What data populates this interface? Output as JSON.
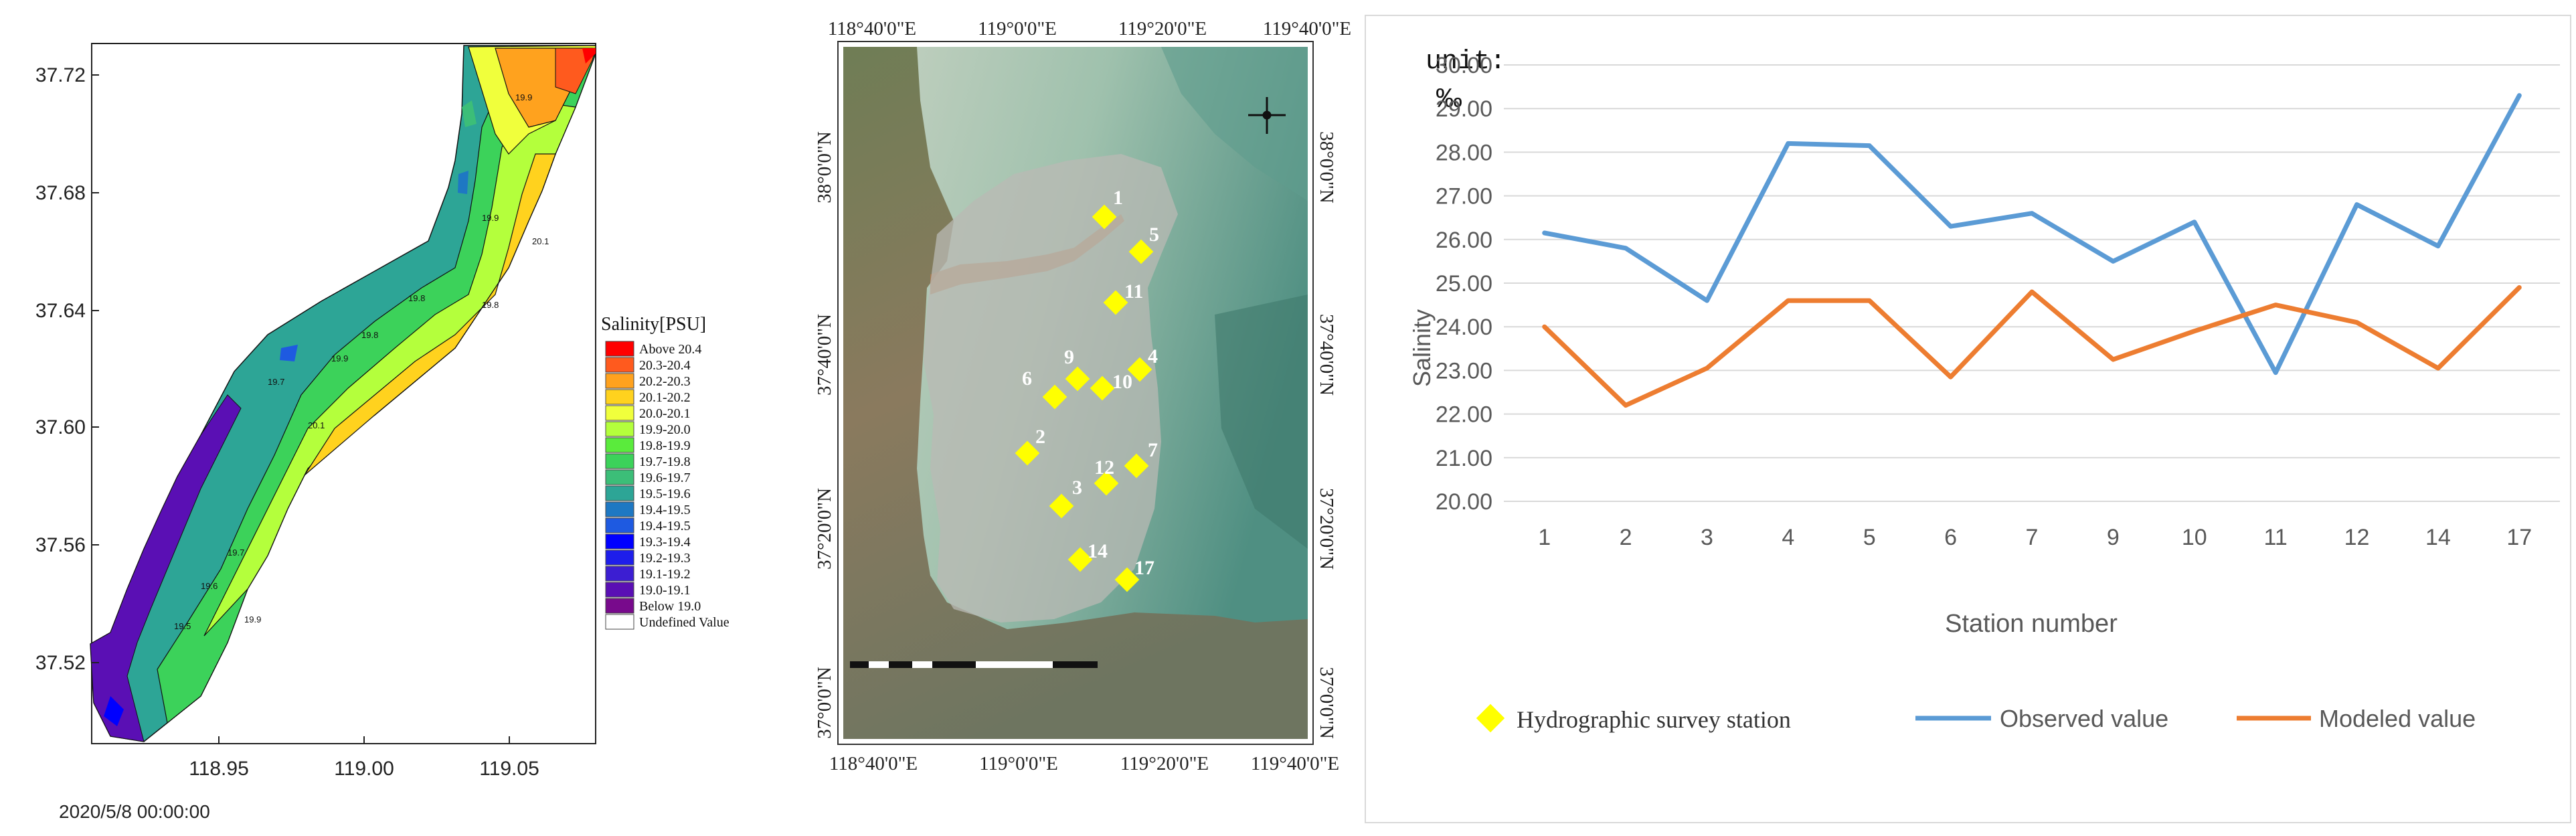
{
  "map": {
    "y_ticks": [
      "37.72",
      "37.68",
      "37.64",
      "37.60",
      "37.56",
      "37.52"
    ],
    "x_ticks": [
      "118.95",
      "119.00",
      "119.05"
    ],
    "timestamp": "2020/5/8 00:00:00",
    "contour_labels": [
      "19.9",
      "20.1",
      "19.9",
      "19.8",
      "19.8",
      "20.1",
      "19.8",
      "19.7",
      "19.9",
      "19.7",
      "19.6",
      "19.9",
      "19.5"
    ],
    "legend": {
      "title": "Salinity[PSU]",
      "items": [
        {
          "label": "Above 20.4",
          "color": "#ff0000"
        },
        {
          "label": "20.3-20.4",
          "color": "#ff5a1e"
        },
        {
          "label": "20.2-20.3",
          "color": "#ffa21e"
        },
        {
          "label": "20.1-20.2",
          "color": "#ffd21e"
        },
        {
          "label": "20.0-20.1",
          "color": "#f0ff3c"
        },
        {
          "label": "19.9-20.0",
          "color": "#b4ff3c"
        },
        {
          "label": "19.8-19.9",
          "color": "#5aeb3c"
        },
        {
          "label": "19.7-19.8",
          "color": "#3cd25a"
        },
        {
          "label": "19.6-19.7",
          "color": "#3cbe78"
        },
        {
          "label": "19.5-19.6",
          "color": "#2da596"
        },
        {
          "label": "19.4-19.5",
          "color": "#1e78c3"
        },
        {
          "label": "19.4-19.5",
          "color": "#1e5ae1"
        },
        {
          "label": "19.3-19.4",
          "color": "#0000ff"
        },
        {
          "label": "19.2-19.3",
          "color": "#1e1eeb"
        },
        {
          "label": "19.1-19.2",
          "color": "#3c1ed2"
        },
        {
          "label": "19.0-19.1",
          "color": "#5a0fb4"
        },
        {
          "label": "Below 19.0",
          "color": "#780a8c"
        },
        {
          "label": "Undefined Value",
          "color": "#ffffff"
        }
      ]
    }
  },
  "sat": {
    "top_ticks": [
      "118°40'0\"E",
      "119°0'0\"E",
      "119°20'0\"E",
      "119°40'0\"E"
    ],
    "bottom_ticks": [
      "118°40'0\"E",
      "119°0'0\"E",
      "119°20'0\"E",
      "119°40'0\"E"
    ],
    "left_ticks": [
      "38°0'0\"N",
      "37°40'0\"N",
      "37°20'0\"N",
      "37°0'0\"N"
    ],
    "right_ticks": [
      "38°0'0\"N",
      "37°40'0\"N",
      "37°20'0\"N",
      "37°0'0\"N"
    ],
    "stations": [
      "1",
      "5",
      "11",
      "9",
      "6",
      "10",
      "4",
      "2",
      "7",
      "12",
      "3",
      "14",
      "17"
    ]
  },
  "legend_bottom": {
    "station": "Hydrographic survey station",
    "station_color": "#ffff00"
  },
  "chart_data": {
    "type": "line",
    "categories": [
      "1",
      "2",
      "3",
      "4",
      "5",
      "6",
      "7",
      "9",
      "10",
      "11",
      "12",
      "14",
      "17"
    ],
    "series": [
      {
        "name": "Observed value",
        "color": "#5b9bd5",
        "values": [
          26.15,
          25.8,
          24.6,
          28.2,
          28.15,
          26.3,
          26.6,
          25.5,
          26.4,
          22.95,
          26.8,
          25.85,
          29.3
        ]
      },
      {
        "name": "Modeled value",
        "color": "#ed7d31",
        "values": [
          24.0,
          22.2,
          23.05,
          24.6,
          24.6,
          22.85,
          24.8,
          23.25,
          23.9,
          24.5,
          24.1,
          23.05,
          24.9
        ]
      }
    ],
    "ylim": [
      20.0,
      30.0
    ],
    "y_ticks": [
      "20.00",
      "21.00",
      "22.00",
      "23.00",
      "24.00",
      "25.00",
      "26.00",
      "27.00",
      "28.00",
      "29.00",
      "30.00"
    ],
    "ylabel": "Salinity",
    "xlabel": "Station number",
    "unit_line1": "unit:",
    "unit_line2": "‰",
    "grid": true,
    "legend": "bottom"
  }
}
